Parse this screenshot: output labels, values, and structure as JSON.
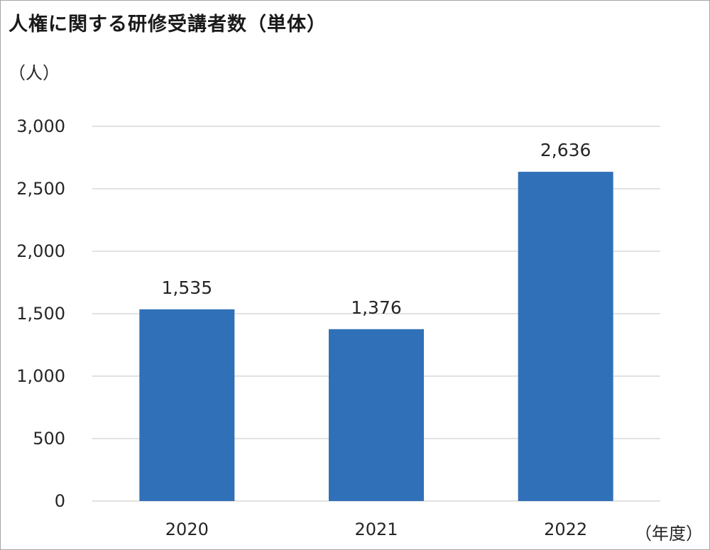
{
  "chart_data": {
    "type": "bar",
    "title": "人権に関する研修受講者数（単体）",
    "ylabel": "（人）",
    "xlabel": "（年度）",
    "categories": [
      "2020",
      "2021",
      "2022"
    ],
    "values": [
      1535,
      1376,
      2636
    ],
    "value_labels": [
      "1,535",
      "1,376",
      "2,636"
    ],
    "ylim": [
      0,
      3000
    ],
    "yticks": [
      0,
      500,
      1000,
      1500,
      2000,
      2500,
      3000
    ],
    "ytick_labels": [
      "0",
      "500",
      "1,000",
      "1,500",
      "2,000",
      "2,500",
      "3,000"
    ],
    "grid": true,
    "legend": "none",
    "bar_color": "#3070b8",
    "grid_color": "#d9d9d9"
  }
}
